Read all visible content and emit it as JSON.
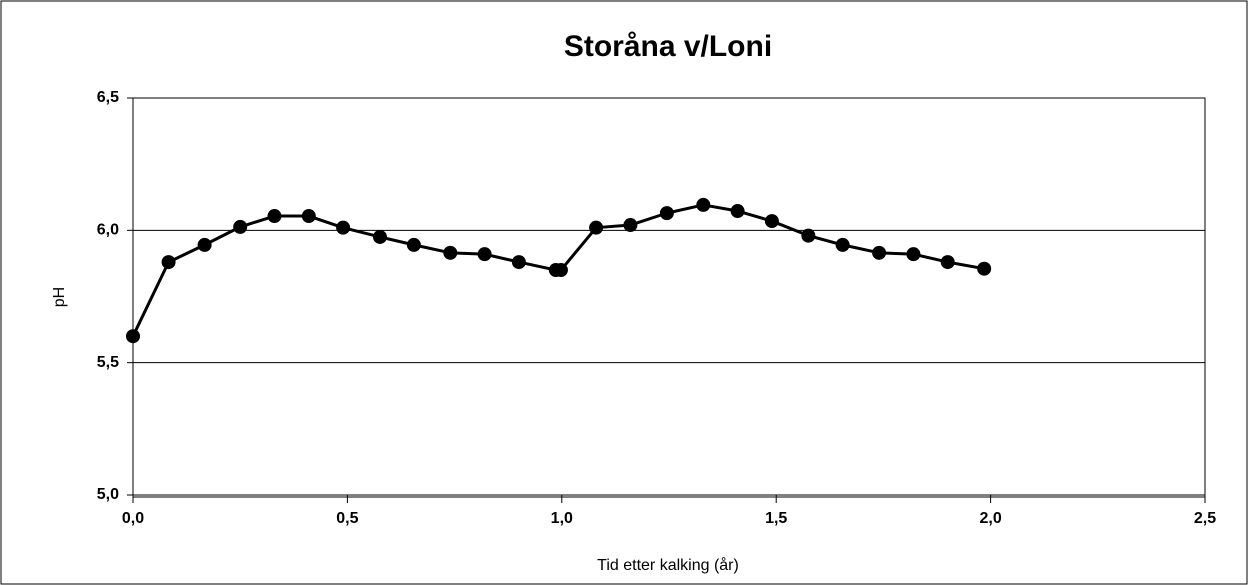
{
  "chart_data": {
    "type": "line",
    "title": "Storåna v/Loni",
    "xlabel": "Tid etter kalking (år)",
    "ylabel": "pH",
    "x": [
      0,
      0.083,
      0.167,
      0.25,
      0.33,
      0.41,
      0.49,
      0.576,
      0.655,
      0.74,
      0.82,
      0.9,
      0.986,
      0.998,
      1.08,
      1.16,
      1.245,
      1.33,
      1.41,
      1.49,
      1.575,
      1.655,
      1.74,
      1.82,
      1.9,
      1.985
    ],
    "series": [
      {
        "name": "pH",
        "color": "#000000",
        "values": [
          5.6,
          5.88,
          5.945,
          6.013,
          6.054,
          6.054,
          6.01,
          5.975,
          5.945,
          5.915,
          5.91,
          5.88,
          5.85,
          5.85,
          6.01,
          6.02,
          6.065,
          6.096,
          6.073,
          6.035,
          5.98,
          5.945,
          5.915,
          5.91,
          5.88,
          5.855
        ]
      }
    ],
    "xlim": [
      0,
      2.5
    ],
    "xticks": [
      {
        "value": 0,
        "label": "0,0"
      },
      {
        "value": 0.5,
        "label": "0,5"
      },
      {
        "value": 1,
        "label": "1,0"
      },
      {
        "value": 1.5,
        "label": "1,5"
      },
      {
        "value": 2,
        "label": "2,0"
      },
      {
        "value": 2.5,
        "label": "2,5"
      }
    ],
    "ylim": [
      5,
      6.5
    ],
    "yticks": [
      {
        "value": 5,
        "label": "5,0"
      },
      {
        "value": 5.5,
        "label": "5,5"
      },
      {
        "value": 6,
        "label": "6,0"
      },
      {
        "value": 6.5,
        "label": "6,5"
      }
    ],
    "grid": true
  }
}
